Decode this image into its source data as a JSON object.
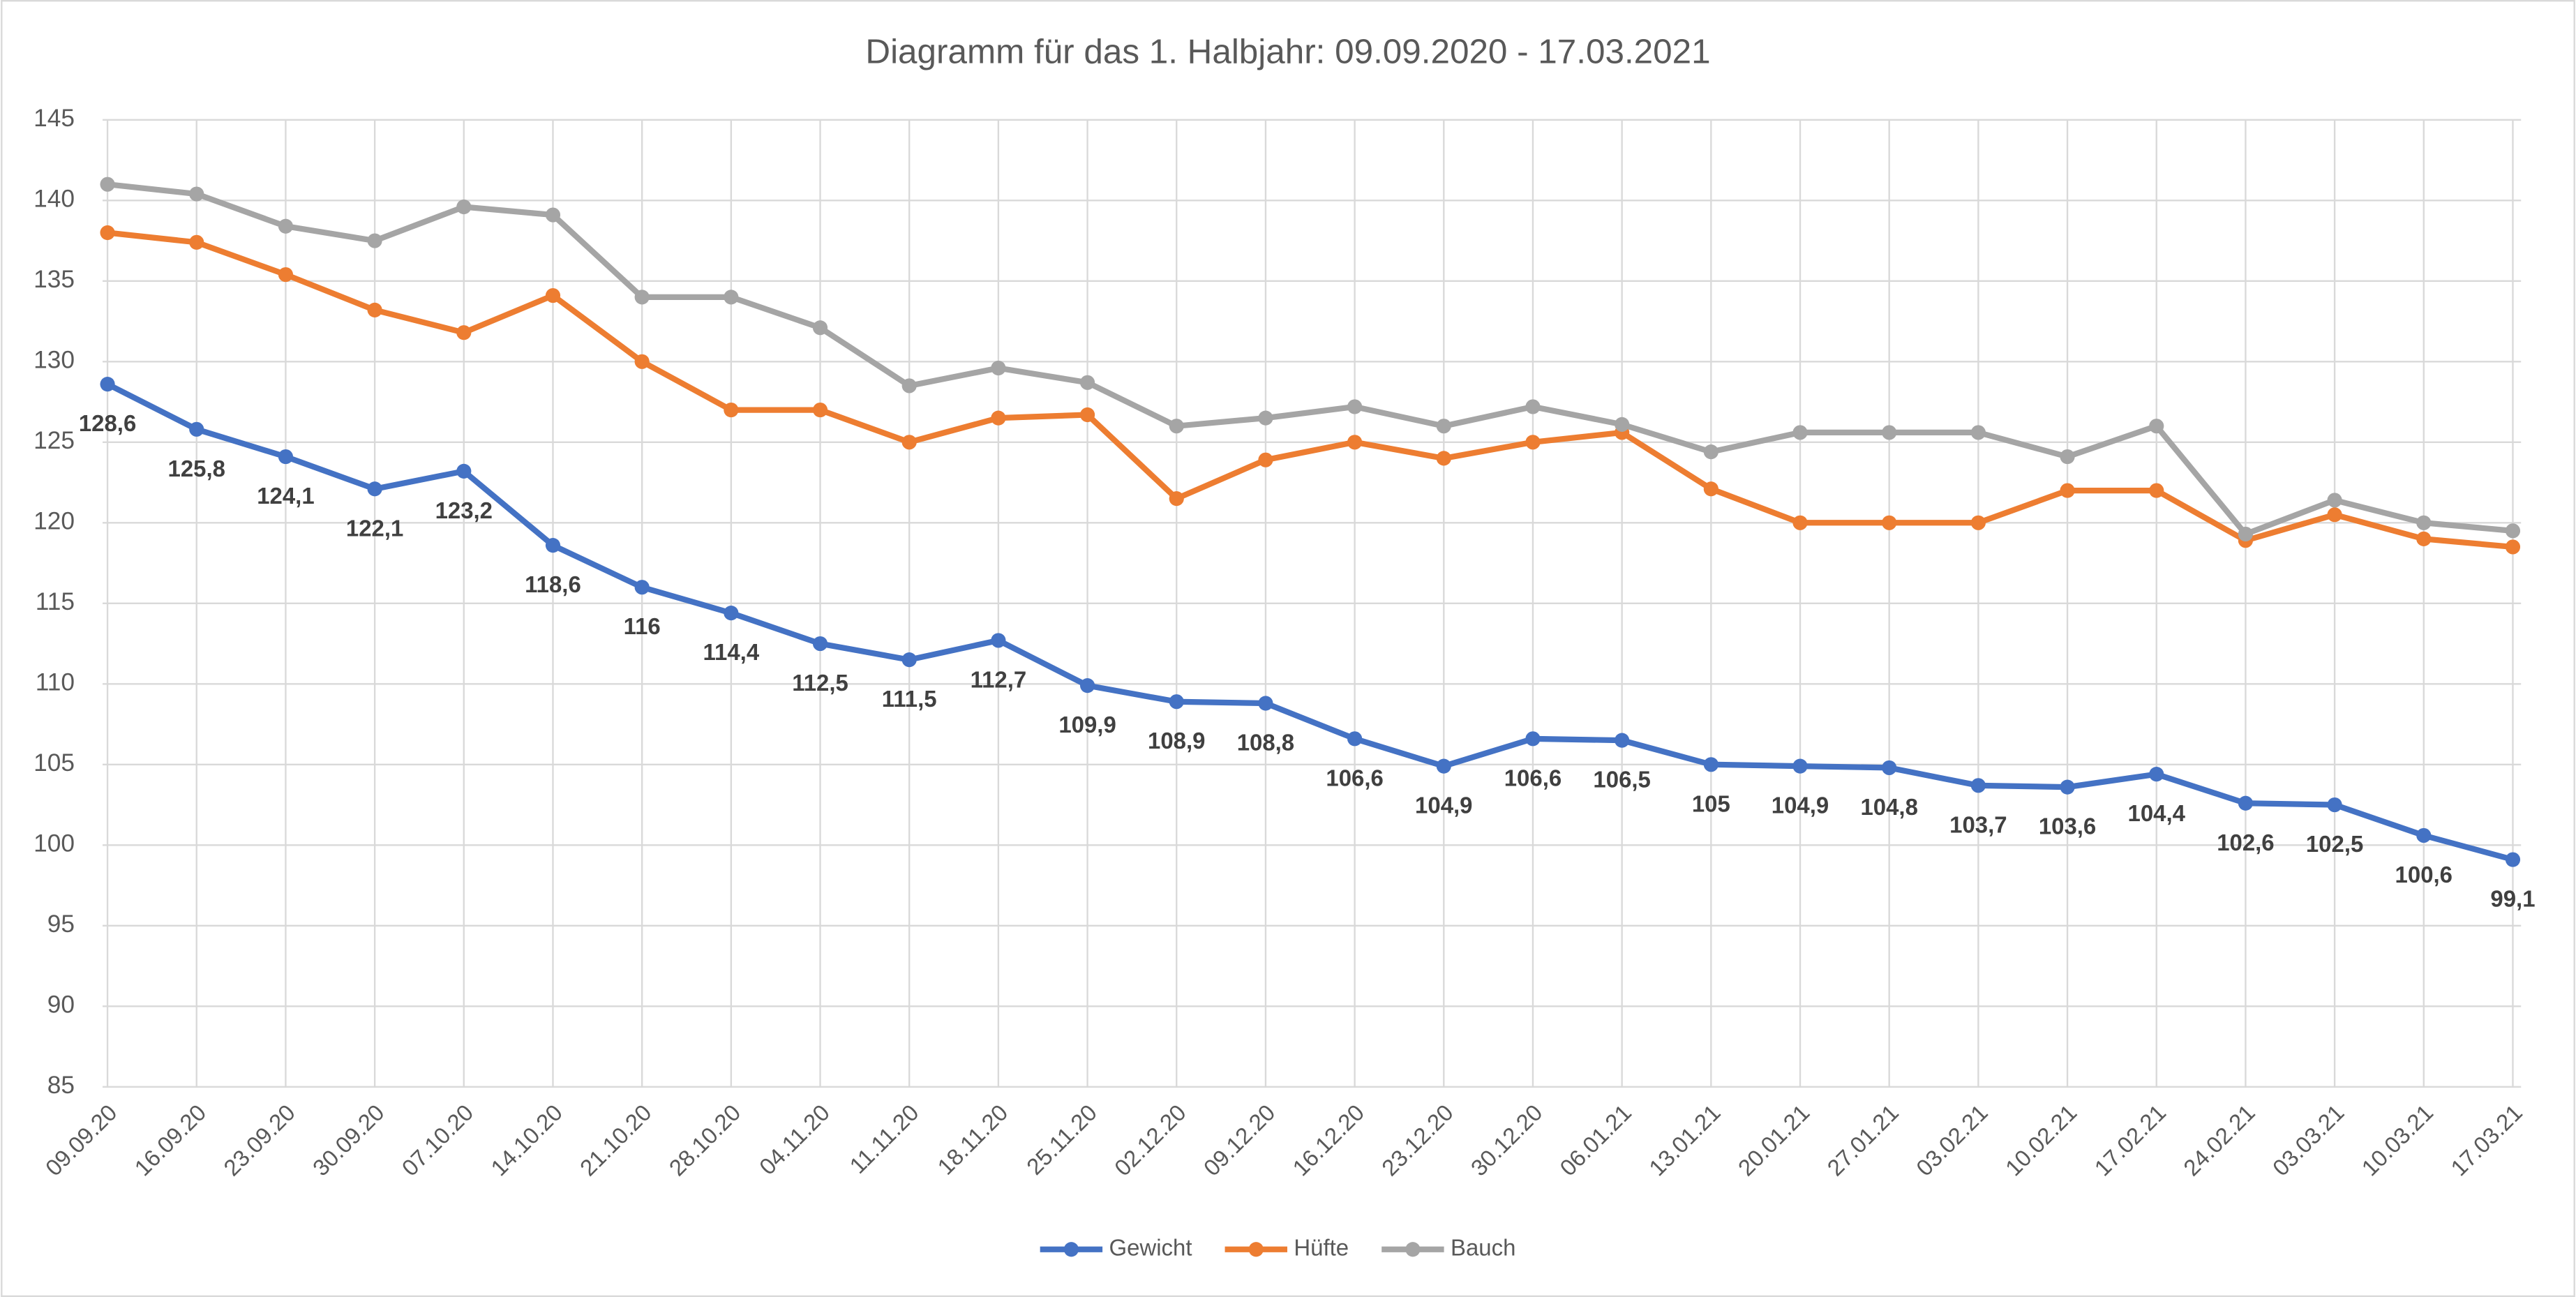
{
  "chart_data": {
    "type": "line",
    "title": "Diagramm für das 1. Halbjahr: 09.09.2020 -  17.03.2021",
    "categories": [
      "09.09.20",
      "16.09.20",
      "23.09.20",
      "30.09.20",
      "07.10.20",
      "14.10.20",
      "21.10.20",
      "28.10.20",
      "04.11.20",
      "11.11.20",
      "18.11.20",
      "25.11.20",
      "02.12.20",
      "09.12.20",
      "16.12.20",
      "23.12.20",
      "30.12.20",
      "06.01.21",
      "13.01.21",
      "20.01.21",
      "27.01.21",
      "03.02.21",
      "10.02.21",
      "17.02.21",
      "24.02.21",
      "03.03.21",
      "10.03.21",
      "17.03.21"
    ],
    "series": [
      {
        "name": "Gewicht",
        "color": "#4472c4",
        "values": [
          128.6,
          125.8,
          124.1,
          122.1,
          123.2,
          118.6,
          116,
          114.4,
          112.5,
          111.5,
          112.7,
          109.9,
          108.9,
          108.8,
          106.6,
          104.9,
          106.6,
          106.5,
          105,
          104.9,
          104.8,
          103.7,
          103.6,
          104.4,
          102.6,
          102.5,
          100.6,
          99.1
        ],
        "value_labels": [
          "128,6",
          "125,8",
          "124,1",
          "122,1",
          "123,2",
          "118,6",
          "116",
          "114,4",
          "112,5",
          "111,5",
          "112,7",
          "109,9",
          "108,9",
          "108,8",
          "106,6",
          "104,9",
          "106,6",
          "106,5",
          "105",
          "104,9",
          "104,8",
          "103,7",
          "103,6",
          "104,4",
          "102,6",
          "102,5",
          "100,6",
          "99,1"
        ]
      },
      {
        "name": "Hüfte",
        "color": "#ed7d31",
        "values": [
          138,
          137.4,
          135.4,
          133.2,
          131.8,
          134.1,
          130,
          127,
          127,
          125,
          126.5,
          126.7,
          121.5,
          123.9,
          125,
          124,
          125,
          125.6,
          122.1,
          120,
          120,
          120,
          122,
          122,
          118.9,
          120.5,
          119,
          118.5
        ]
      },
      {
        "name": "Bauch",
        "color": "#a5a5a5",
        "values": [
          141,
          140.4,
          138.4,
          137.5,
          139.6,
          139.1,
          134,
          134,
          132.1,
          128.5,
          129.6,
          128.7,
          126,
          126.5,
          127.2,
          126,
          127.2,
          126.1,
          124.4,
          125.6,
          125.6,
          125.6,
          124.1,
          126,
          119.3,
          121.4,
          120,
          119.5
        ]
      }
    ],
    "ylim": [
      85,
      145
    ],
    "yticks": [
      85,
      90,
      95,
      100,
      105,
      110,
      115,
      120,
      125,
      130,
      135,
      140,
      145
    ],
    "grid": true
  }
}
